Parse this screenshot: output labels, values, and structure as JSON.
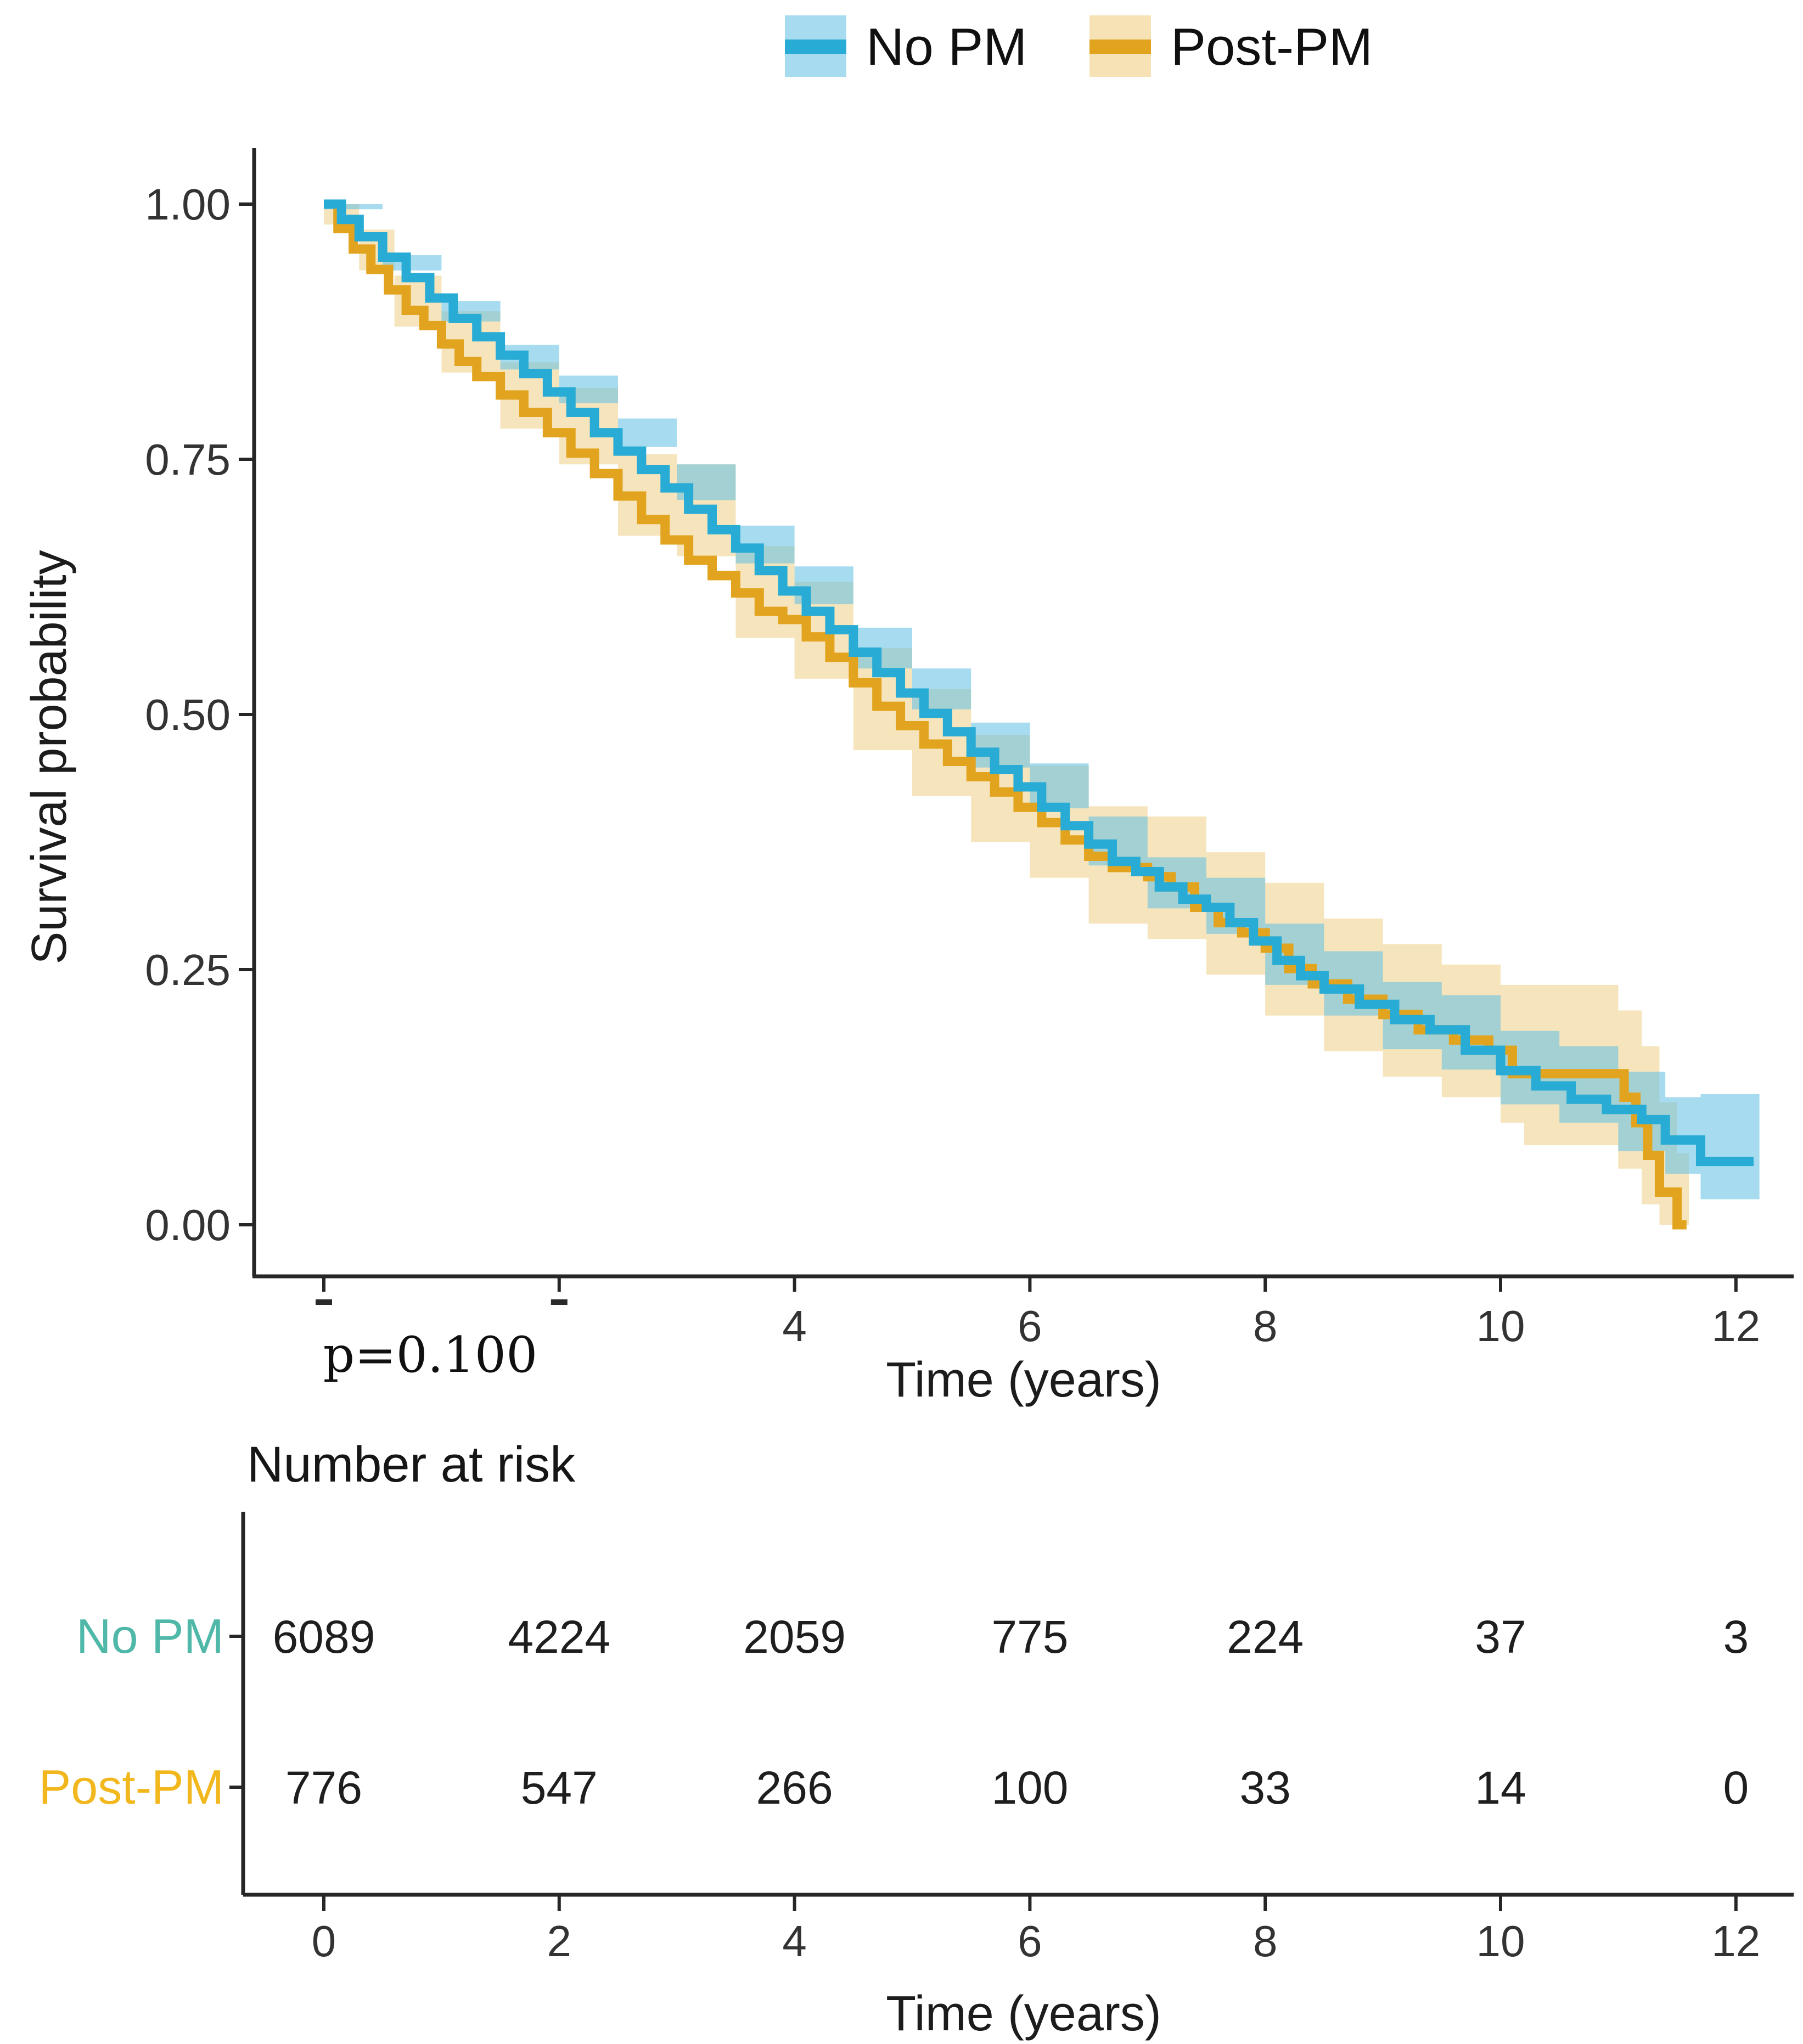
{
  "legend": {
    "items": [
      {
        "label": "No PM",
        "line_color": "#28ABD4",
        "band_color": "#5FC0E4"
      },
      {
        "label": "Post-PM",
        "line_color": "#E2A41E",
        "band_color": "#EECB79"
      }
    ]
  },
  "axes": {
    "y_title": "Survival probability",
    "x_title": "Time (years)",
    "y_tick_labels": [
      "1.00",
      "0.75",
      "0.50",
      "0.25",
      "0.00"
    ],
    "y_tick_values": [
      1.0,
      0.75,
      0.5,
      0.25,
      0.0
    ],
    "x_tick_values": [
      0,
      2,
      4,
      6,
      8,
      10,
      12
    ],
    "main_x_tick_labels": [
      "",
      "",
      "4",
      "6",
      "8",
      "10",
      "12"
    ],
    "x_range": [
      0,
      12.5
    ],
    "y_range": [
      -0.05,
      1.02
    ]
  },
  "annotation": {
    "p_value": "p=0.100"
  },
  "chart_data": {
    "type": "line",
    "subtype": "kaplan-meier-step",
    "title": "",
    "xlabel": "Time (years)",
    "ylabel": "Survival probability",
    "xlim": [
      0,
      12.5
    ],
    "ylim": [
      0,
      1
    ],
    "grid": false,
    "legend_position": "top",
    "series": [
      {
        "name": "No PM",
        "line_color": "#28ABD4",
        "band_color": "#5FC0E4",
        "points": [
          [
            0,
            1.0
          ],
          [
            0.15,
            0.985
          ],
          [
            0.3,
            0.968
          ],
          [
            0.5,
            0.948
          ],
          [
            0.7,
            0.928
          ],
          [
            0.9,
            0.908
          ],
          [
            1.1,
            0.888
          ],
          [
            1.3,
            0.87
          ],
          [
            1.5,
            0.852
          ],
          [
            1.7,
            0.834
          ],
          [
            1.9,
            0.816
          ],
          [
            2.1,
            0.796
          ],
          [
            2.3,
            0.776
          ],
          [
            2.5,
            0.758
          ],
          [
            2.7,
            0.74
          ],
          [
            2.9,
            0.722
          ],
          [
            3.1,
            0.701
          ],
          [
            3.3,
            0.681
          ],
          [
            3.5,
            0.663
          ],
          [
            3.7,
            0.641
          ],
          [
            3.9,
            0.621
          ],
          [
            4.1,
            0.601
          ],
          [
            4.3,
            0.583
          ],
          [
            4.5,
            0.561
          ],
          [
            4.7,
            0.541
          ],
          [
            4.9,
            0.521
          ],
          [
            5.1,
            0.501
          ],
          [
            5.3,
            0.483
          ],
          [
            5.5,
            0.463
          ],
          [
            5.7,
            0.446
          ],
          [
            5.9,
            0.429
          ],
          [
            6.1,
            0.409
          ],
          [
            6.3,
            0.391
          ],
          [
            6.5,
            0.373
          ],
          [
            6.7,
            0.356
          ],
          [
            6.9,
            0.346
          ],
          [
            7.1,
            0.331
          ],
          [
            7.3,
            0.319
          ],
          [
            7.5,
            0.311
          ],
          [
            7.7,
            0.296
          ],
          [
            7.9,
            0.278
          ],
          [
            8.1,
            0.259
          ],
          [
            8.3,
            0.244
          ],
          [
            8.5,
            0.231
          ],
          [
            8.8,
            0.216
          ],
          [
            9.1,
            0.201
          ],
          [
            9.4,
            0.191
          ],
          [
            9.7,
            0.171
          ],
          [
            10.0,
            0.151
          ],
          [
            10.3,
            0.136
          ],
          [
            10.6,
            0.123
          ],
          [
            10.9,
            0.113
          ],
          [
            11.2,
            0.103
          ],
          [
            11.4,
            0.083
          ],
          [
            11.7,
            0.062
          ],
          [
            12.15,
            0.062
          ]
        ],
        "band": [
          [
            0,
            0.995,
            1.0
          ],
          [
            0.5,
            0.935,
            0.95
          ],
          [
            1.0,
            0.885,
            0.905
          ],
          [
            1.5,
            0.838,
            0.862
          ],
          [
            2.0,
            0.805,
            0.832
          ],
          [
            2.5,
            0.762,
            0.79
          ],
          [
            3.0,
            0.71,
            0.745
          ],
          [
            3.5,
            0.648,
            0.685
          ],
          [
            4.0,
            0.608,
            0.645
          ],
          [
            4.5,
            0.545,
            0.585
          ],
          [
            5.0,
            0.505,
            0.545
          ],
          [
            5.5,
            0.448,
            0.492
          ],
          [
            6.0,
            0.408,
            0.452
          ],
          [
            6.5,
            0.352,
            0.4
          ],
          [
            7.0,
            0.31,
            0.36
          ],
          [
            7.5,
            0.285,
            0.34
          ],
          [
            8.0,
            0.235,
            0.295
          ],
          [
            8.5,
            0.205,
            0.268
          ],
          [
            9.0,
            0.172,
            0.238
          ],
          [
            9.5,
            0.152,
            0.225
          ],
          [
            10.0,
            0.118,
            0.19
          ],
          [
            10.5,
            0.1,
            0.175
          ],
          [
            11.0,
            0.072,
            0.15
          ],
          [
            11.4,
            0.05,
            0.125
          ],
          [
            11.7,
            0.025,
            0.128
          ],
          [
            12.2,
            0.025,
            0.128
          ]
        ]
      },
      {
        "name": "Post-PM",
        "line_color": "#E2A41E",
        "band_color": "#EECB79",
        "points": [
          [
            0,
            1.0
          ],
          [
            0.12,
            0.976
          ],
          [
            0.25,
            0.956
          ],
          [
            0.4,
            0.936
          ],
          [
            0.55,
            0.916
          ],
          [
            0.7,
            0.896
          ],
          [
            0.85,
            0.881
          ],
          [
            1.0,
            0.863
          ],
          [
            1.15,
            0.846
          ],
          [
            1.3,
            0.831
          ],
          [
            1.5,
            0.813
          ],
          [
            1.7,
            0.796
          ],
          [
            1.9,
            0.776
          ],
          [
            2.1,
            0.756
          ],
          [
            2.3,
            0.736
          ],
          [
            2.5,
            0.714
          ],
          [
            2.7,
            0.691
          ],
          [
            2.9,
            0.671
          ],
          [
            3.1,
            0.651
          ],
          [
            3.3,
            0.636
          ],
          [
            3.5,
            0.619
          ],
          [
            3.7,
            0.601
          ],
          [
            3.9,
            0.593
          ],
          [
            4.1,
            0.576
          ],
          [
            4.3,
            0.556
          ],
          [
            4.5,
            0.531
          ],
          [
            4.7,
            0.508
          ],
          [
            4.9,
            0.489
          ],
          [
            5.1,
            0.471
          ],
          [
            5.3,
            0.454
          ],
          [
            5.5,
            0.439
          ],
          [
            5.7,
            0.424
          ],
          [
            5.9,
            0.409
          ],
          [
            6.1,
            0.394
          ],
          [
            6.3,
            0.377
          ],
          [
            6.5,
            0.361
          ],
          [
            6.7,
            0.35
          ],
          [
            7.0,
            0.341
          ],
          [
            7.2,
            0.331
          ],
          [
            7.4,
            0.311
          ],
          [
            7.6,
            0.296
          ],
          [
            7.8,
            0.286
          ],
          [
            8.0,
            0.271
          ],
          [
            8.2,
            0.251
          ],
          [
            8.4,
            0.236
          ],
          [
            8.7,
            0.221
          ],
          [
            9.0,
            0.206
          ],
          [
            9.3,
            0.191
          ],
          [
            9.6,
            0.181
          ],
          [
            9.9,
            0.171
          ],
          [
            10.1,
            0.148
          ],
          [
            11.0,
            0.148
          ],
          [
            11.05,
            0.125
          ],
          [
            11.15,
            0.1
          ],
          [
            11.25,
            0.068
          ],
          [
            11.35,
            0.032
          ],
          [
            11.45,
            0.032
          ],
          [
            11.5,
            0.0
          ],
          [
            11.58,
            0.0
          ]
        ],
        "band": [
          [
            0,
            0.98,
            1.0
          ],
          [
            0.3,
            0.935,
            0.975
          ],
          [
            0.6,
            0.88,
            0.93
          ],
          [
            1.0,
            0.835,
            0.895
          ],
          [
            1.5,
            0.78,
            0.845
          ],
          [
            2.0,
            0.745,
            0.82
          ],
          [
            2.5,
            0.675,
            0.755
          ],
          [
            3.0,
            0.655,
            0.745
          ],
          [
            3.5,
            0.575,
            0.665
          ],
          [
            4.0,
            0.535,
            0.63
          ],
          [
            4.5,
            0.465,
            0.565
          ],
          [
            5.0,
            0.42,
            0.525
          ],
          [
            5.5,
            0.375,
            0.48
          ],
          [
            6.0,
            0.34,
            0.45
          ],
          [
            6.5,
            0.295,
            0.41
          ],
          [
            7.0,
            0.28,
            0.4
          ],
          [
            7.5,
            0.245,
            0.365
          ],
          [
            8.0,
            0.205,
            0.335
          ],
          [
            8.5,
            0.17,
            0.3
          ],
          [
            9.0,
            0.145,
            0.275
          ],
          [
            9.5,
            0.125,
            0.255
          ],
          [
            10.0,
            0.1,
            0.235
          ],
          [
            10.2,
            0.078,
            0.235
          ],
          [
            11.0,
            0.055,
            0.21
          ],
          [
            11.2,
            0.02,
            0.175
          ],
          [
            11.35,
            0.0,
            0.12
          ],
          [
            11.5,
            0.0,
            0.07
          ],
          [
            11.6,
            0.0,
            0.07
          ]
        ]
      }
    ]
  },
  "risk_table": {
    "title": "Number at risk",
    "x_title": "Time (years)",
    "x_tick_labels": [
      "0",
      "2",
      "4",
      "6",
      "8",
      "10",
      "12"
    ],
    "rows": [
      {
        "label": "No PM",
        "color": "#4FB8A8",
        "values": [
          "6089",
          "4224",
          "2059",
          "775",
          "224",
          "37",
          "3"
        ]
      },
      {
        "label": "Post-PM",
        "color": "#F2B71C",
        "values": [
          "776",
          "547",
          "266",
          "100",
          "33",
          "14",
          "0"
        ]
      }
    ]
  }
}
